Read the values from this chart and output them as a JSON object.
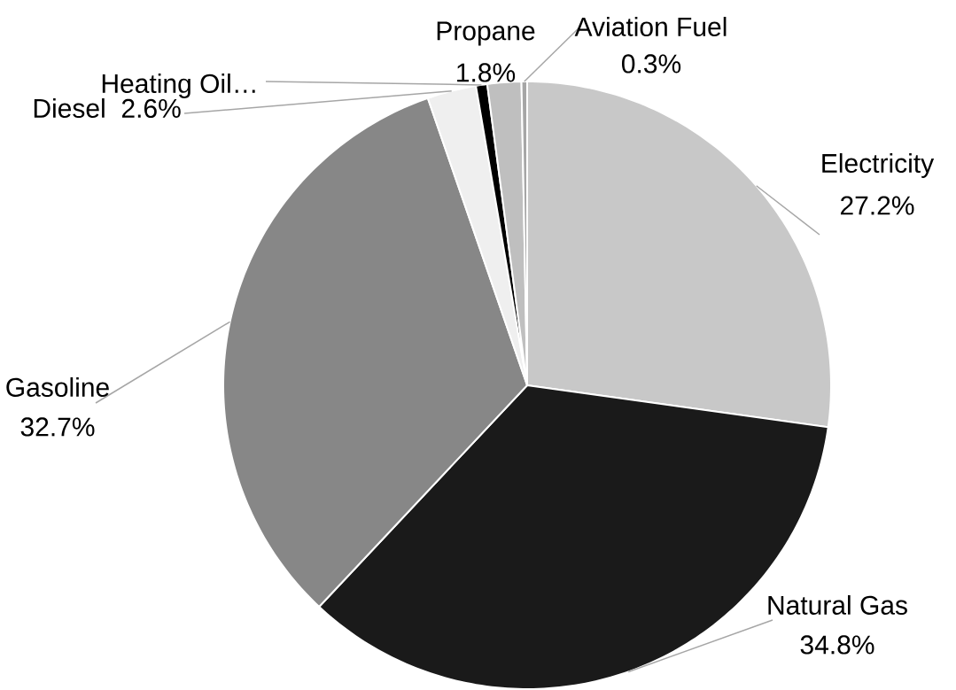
{
  "chart_data": {
    "type": "pie",
    "categories": [
      "Electricity",
      "Natural Gas",
      "Gasoline",
      "Diesel",
      "Heating Oil…",
      "Propane",
      "Aviation Fuel"
    ],
    "values": [
      27.2,
      34.8,
      32.7,
      2.6,
      0.6,
      1.8,
      0.3
    ],
    "value_labels": [
      "27.2%",
      "34.8%",
      "32.7%",
      "2.6%",
      null,
      "1.8%",
      "0.3%"
    ],
    "colors": [
      "#c8c8c8",
      "#1a1a1a",
      "#878787",
      "#efefef",
      "#000000",
      "#bfbfbf",
      "#a6a6a6"
    ]
  }
}
